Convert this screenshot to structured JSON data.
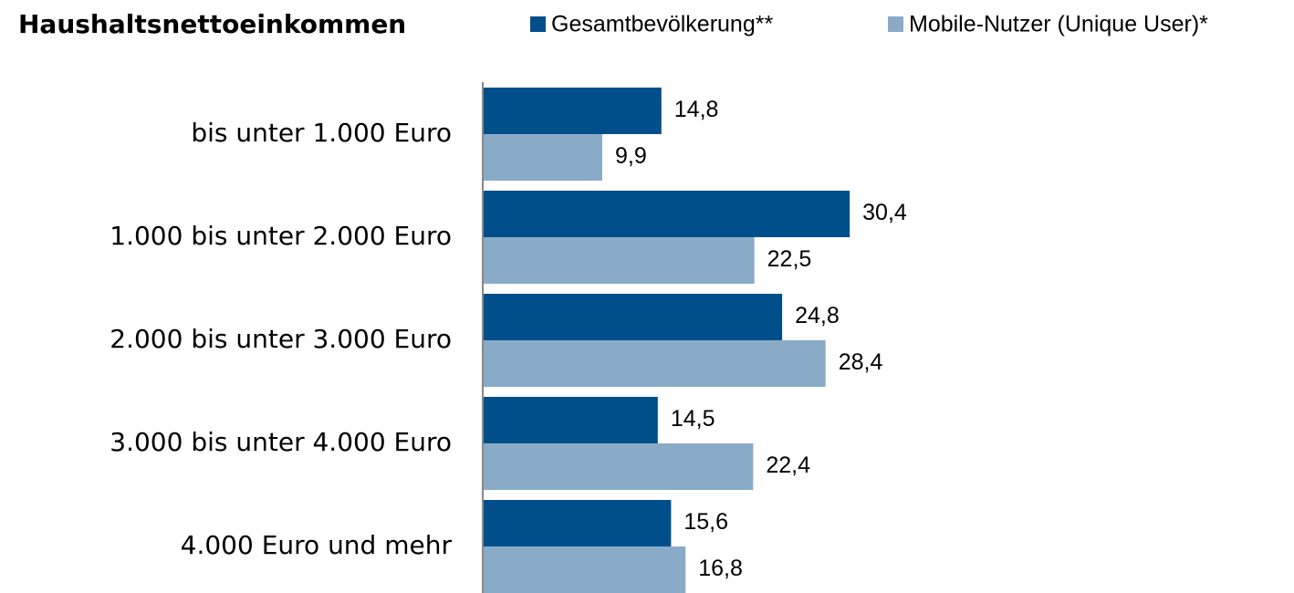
{
  "chart_data": {
    "type": "hbar",
    "title": "Haushaltsnettoeinkommen",
    "categories": [
      "bis unter 1.000 Euro",
      "1.000 bis unter 2.000 Euro",
      "2.000 bis unter 3.000 Euro",
      "3.000 bis unter 4.000 Euro",
      "4.000 Euro und mehr"
    ],
    "series": [
      {
        "name": "Gesamtbevölkerung**",
        "color": "#004f8a",
        "values": [
          14.8,
          30.4,
          24.8,
          14.5,
          15.6
        ],
        "value_labels": [
          "14,8",
          "30,4",
          "24,8",
          "14,5",
          "15,6"
        ]
      },
      {
        "name": "Mobile-Nutzer (Unique User)*",
        "color": "#8aabc8",
        "values": [
          9.9,
          22.5,
          28.4,
          22.4,
          16.8
        ],
        "value_labels": [
          "9,9",
          "22,5",
          "28,4",
          "22,4",
          "16,8"
        ]
      }
    ],
    "xlim": [
      0,
      67.2
    ],
    "legend": "top"
  }
}
